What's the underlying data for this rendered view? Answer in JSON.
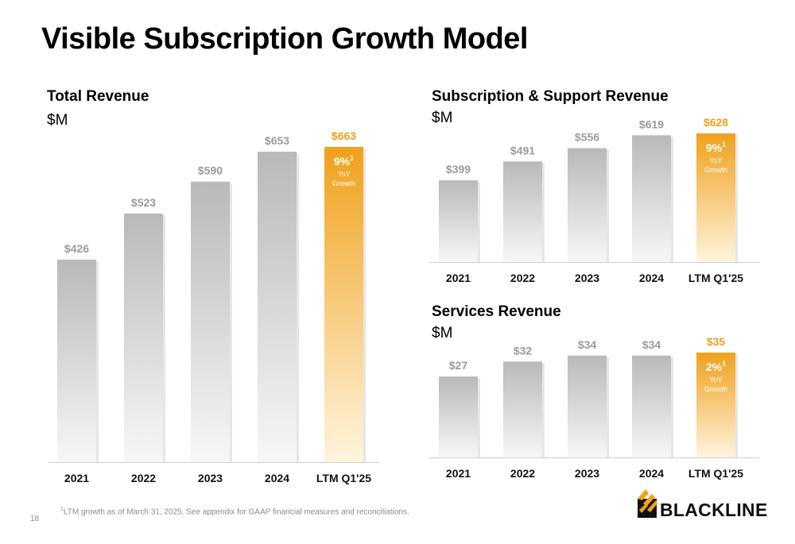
{
  "page": {
    "title": "Visible Subscription Growth Model",
    "page_number": "18",
    "footnote": {
      "marker": "1",
      "text": "LTM growth as of March 31, 2025. See appendix for GAAP financial measures and reconciliations."
    },
    "logo_text": "BLACKLINE"
  },
  "colors": {
    "bar_gray_top": "#b9b9b9",
    "bar_gray_bottom": "#f7f7f7",
    "highlight_top": "#f0a11b",
    "highlight_bottom": "#fff4de",
    "highlight_label": "#f0a11b",
    "value_label_gray": "#9a9a9a",
    "axis": "#d0d0d0"
  },
  "chart_data": [
    {
      "type": "bar",
      "title": "Total Revenue",
      "unit": "$M",
      "categories": [
        "2021",
        "2022",
        "2023",
        "2024",
        "LTM Q1'25"
      ],
      "values": [
        426,
        523,
        590,
        653,
        663
      ],
      "value_labels": [
        "$426",
        "$523",
        "$590",
        "$653",
        "$663"
      ],
      "highlight_index": 4,
      "growth_callout": {
        "value": "9%",
        "marker": "1",
        "line1": "YoY",
        "line2": "Growth"
      },
      "ylim": [
        0,
        663
      ]
    },
    {
      "type": "bar",
      "title": "Subscription & Support Revenue",
      "unit": "$M",
      "categories": [
        "2021",
        "2022",
        "2023",
        "2024",
        "LTM Q1'25"
      ],
      "values": [
        399,
        491,
        556,
        619,
        628
      ],
      "value_labels": [
        "$399",
        "$491",
        "$556",
        "$619",
        "$628"
      ],
      "highlight_index": 4,
      "growth_callout": {
        "value": "9%",
        "marker": "1",
        "line1": "YoY",
        "line2": "Growth"
      },
      "ylim": [
        0,
        628
      ]
    },
    {
      "type": "bar",
      "title": "Services Revenue",
      "unit": "$M",
      "categories": [
        "2021",
        "2022",
        "2023",
        "2024",
        "LTM Q1'25"
      ],
      "values": [
        27,
        32,
        34,
        34,
        35
      ],
      "value_labels": [
        "$27",
        "$32",
        "$34",
        "$34",
        "$35"
      ],
      "highlight_index": 4,
      "growth_callout": {
        "value": "2%",
        "marker": "1",
        "line1": "YoY",
        "line2": "Growth"
      },
      "ylim": [
        0,
        35
      ]
    }
  ]
}
